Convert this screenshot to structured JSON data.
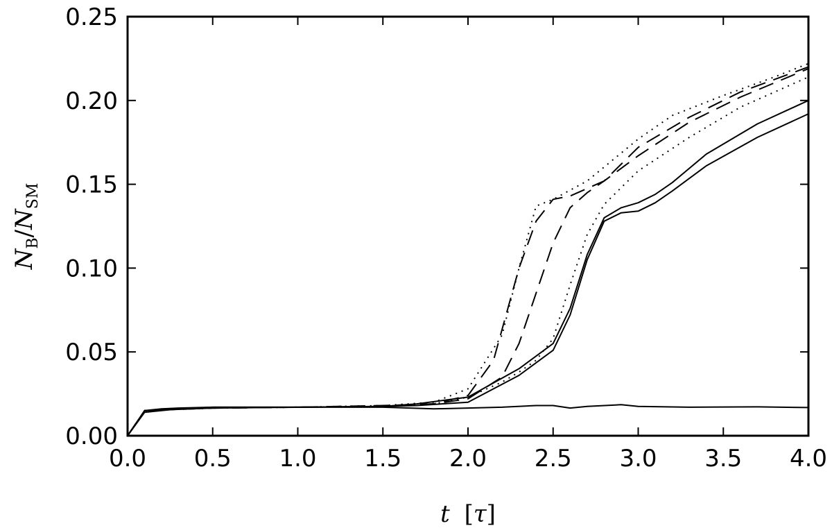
{
  "chart_data": {
    "type": "line",
    "xlabel": {
      "italic": "t",
      "unit": "[τ]",
      "tau": "τ",
      "open": "[",
      "close": "]"
    },
    "ylabel": {
      "N": "N",
      "B": "B",
      "slash": "/",
      "SM": "SM"
    },
    "xlim": [
      0.0,
      4.0
    ],
    "ylim": [
      0.0,
      0.25
    ],
    "x_ticks": [
      "0.0",
      "0.5",
      "1.0",
      "1.5",
      "2.0",
      "2.5",
      "3.0",
      "3.5",
      "4.0"
    ],
    "y_ticks": [
      "0.00",
      "0.05",
      "0.10",
      "0.15",
      "0.20",
      "0.25"
    ],
    "grid": false,
    "series": [
      {
        "style": "solid",
        "x": [
          0.0,
          0.1,
          0.2,
          0.3,
          0.5,
          1.0,
          1.5,
          1.7,
          2.0,
          2.3,
          2.5,
          2.6,
          2.7,
          2.8,
          2.9,
          3.0,
          3.1,
          3.2,
          3.4,
          3.7,
          4.0
        ],
        "y": [
          0.0,
          0.015,
          0.016,
          0.0165,
          0.017,
          0.017,
          0.0175,
          0.018,
          0.02,
          0.036,
          0.051,
          0.072,
          0.105,
          0.128,
          0.133,
          0.134,
          0.139,
          0.146,
          0.161,
          0.178,
          0.192
        ]
      },
      {
        "style": "solid",
        "x": [
          0.0,
          0.1,
          0.2,
          0.3,
          0.5,
          1.0,
          1.5,
          1.7,
          2.0,
          2.3,
          2.5,
          2.6,
          2.7,
          2.8,
          2.9,
          3.0,
          3.1,
          3.2,
          3.4,
          3.7,
          4.0
        ],
        "y": [
          0.0,
          0.014,
          0.015,
          0.016,
          0.017,
          0.017,
          0.0175,
          0.019,
          0.023,
          0.04,
          0.055,
          0.076,
          0.108,
          0.13,
          0.136,
          0.139,
          0.144,
          0.151,
          0.168,
          0.186,
          0.2
        ]
      },
      {
        "style": "solid",
        "x": [
          0.0,
          0.1,
          0.5,
          1.0,
          1.5,
          1.8,
          2.0,
          2.2,
          2.4,
          2.5,
          2.6,
          2.7,
          2.9,
          3.0,
          3.3,
          3.7,
          4.0
        ],
        "y": [
          0.0,
          0.015,
          0.0165,
          0.017,
          0.017,
          0.016,
          0.0165,
          0.017,
          0.018,
          0.018,
          0.0165,
          0.0175,
          0.0185,
          0.0175,
          0.017,
          0.0172,
          0.0168
        ]
      },
      {
        "style": "dotted",
        "x": [
          0.0,
          0.1,
          0.5,
          1.0,
          1.5,
          1.8,
          2.0,
          2.2,
          2.3,
          2.4,
          2.5,
          2.7,
          3.0,
          3.2,
          3.5,
          3.8,
          4.0
        ],
        "y": [
          0.0,
          0.015,
          0.0165,
          0.017,
          0.018,
          0.02,
          0.028,
          0.06,
          0.1,
          0.137,
          0.141,
          0.152,
          0.177,
          0.191,
          0.203,
          0.214,
          0.222
        ]
      },
      {
        "style": "dotted",
        "x": [
          0.0,
          0.1,
          0.5,
          1.0,
          1.5,
          1.8,
          2.0,
          2.2,
          2.3,
          2.4,
          2.5,
          2.6,
          2.7,
          2.8,
          3.0,
          3.3,
          3.6,
          4.0
        ],
        "y": [
          0.0,
          0.015,
          0.0165,
          0.017,
          0.0175,
          0.019,
          0.023,
          0.032,
          0.038,
          0.045,
          0.058,
          0.09,
          0.12,
          0.138,
          0.158,
          0.178,
          0.196,
          0.214
        ]
      },
      {
        "style": "dashed",
        "x": [
          0.0,
          0.1,
          0.5,
          1.0,
          1.5,
          1.8,
          2.0,
          2.15,
          2.3,
          2.4,
          2.5,
          2.6,
          2.8,
          3.0,
          3.3,
          3.6,
          4.0
        ],
        "y": [
          0.0,
          0.015,
          0.0165,
          0.017,
          0.018,
          0.019,
          0.024,
          0.045,
          0.1,
          0.128,
          0.141,
          0.143,
          0.152,
          0.172,
          0.19,
          0.205,
          0.22
        ]
      },
      {
        "style": "dashed",
        "x": [
          0.0,
          0.1,
          0.5,
          1.0,
          1.5,
          1.8,
          2.0,
          2.2,
          2.3,
          2.4,
          2.5,
          2.6,
          2.7,
          2.8,
          3.0,
          3.3,
          3.6,
          4.0
        ],
        "y": [
          0.0,
          0.015,
          0.0165,
          0.017,
          0.0175,
          0.019,
          0.022,
          0.035,
          0.055,
          0.085,
          0.115,
          0.136,
          0.145,
          0.152,
          0.167,
          0.187,
          0.202,
          0.219
        ]
      }
    ]
  }
}
